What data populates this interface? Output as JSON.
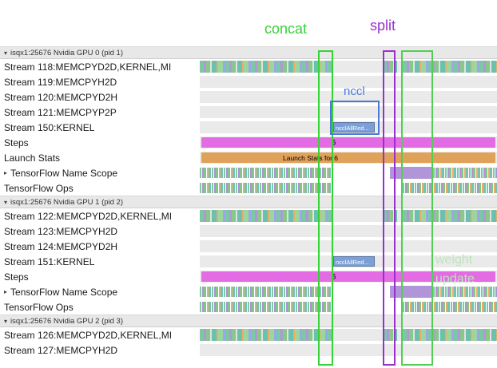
{
  "annotations": {
    "concat": {
      "label": "concat",
      "color": "#35d435"
    },
    "split": {
      "label": "split",
      "color": "#9a30cc"
    },
    "nccl": {
      "label": "nccl",
      "color": "#4b79d6"
    },
    "weight_update": {
      "line1": "weight",
      "line2": "update",
      "color": "#b9e8b9"
    }
  },
  "colors": {
    "steps_bar": "#e36be3",
    "launch_bar": "#e0a159",
    "nccl_bar": "#7b9fd6",
    "concat_box": "#35d435",
    "split_box": "#9a30cc",
    "nccl_box": "#4b79d6",
    "weight_box": "#52cf52"
  },
  "rows": [
    {
      "kind": "section",
      "arrow": "▾",
      "label": "isqx1:25676 Nvidia GPU 0 (pid 1)"
    },
    {
      "kind": "dense",
      "label": "Stream 118:MEMCPYD2D,KERNEL,MI"
    },
    {
      "kind": "empty",
      "label": "Stream 119:MEMCPYH2D"
    },
    {
      "kind": "empty",
      "label": "Stream 120:MEMCPYD2H"
    },
    {
      "kind": "empty",
      "label": "Stream 121:MEMCPYP2P"
    },
    {
      "kind": "nccl",
      "label": "Stream 150:KERNEL",
      "bar_label": "ncclAllRed..."
    },
    {
      "kind": "steps",
      "label": "Steps",
      "bar_label": "6"
    },
    {
      "kind": "launch",
      "label": "Launch Stats",
      "bar_label": "Launch Stats for 6"
    },
    {
      "kind": "scope",
      "arrow": "▸",
      "label": "TensorFlow Name Scope"
    },
    {
      "kind": "ops",
      "label": "TensorFlow Ops"
    },
    {
      "kind": "section",
      "arrow": "▾",
      "label": "isqx1:25676 Nvidia GPU 1 (pid 2)"
    },
    {
      "kind": "dense",
      "label": "Stream 122:MEMCPYD2D,KERNEL,MI"
    },
    {
      "kind": "empty",
      "label": "Stream 123:MEMCPYH2D"
    },
    {
      "kind": "empty",
      "label": "Stream 124:MEMCPYD2H"
    },
    {
      "kind": "nccl",
      "label": "Stream 151:KERNEL",
      "bar_label": "ncclAllRed..."
    },
    {
      "kind": "steps",
      "label": "Steps",
      "bar_label": "6"
    },
    {
      "kind": "scope",
      "arrow": "▸",
      "label": "TensorFlow Name Scope"
    },
    {
      "kind": "ops",
      "label": "TensorFlow Ops"
    },
    {
      "kind": "section",
      "arrow": "▾",
      "label": "isqx1:25676 Nvidia GPU 2 (pid 3)"
    },
    {
      "kind": "dense",
      "label": "Stream 126:MEMCPYD2D,KERNEL,MI"
    },
    {
      "kind": "empty",
      "label": "Stream 127:MEMCPYH2D"
    }
  ]
}
